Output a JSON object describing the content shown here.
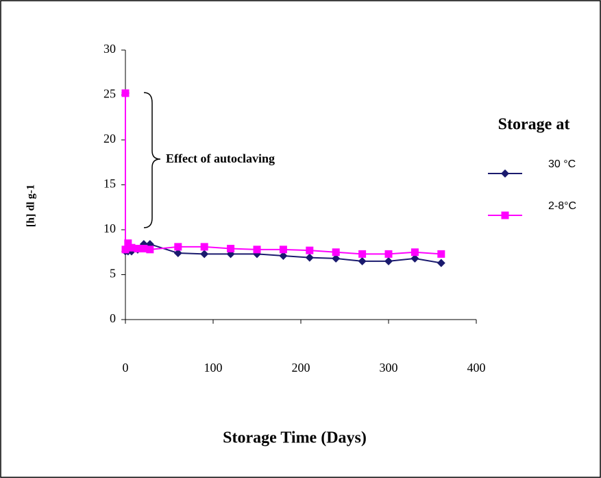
{
  "chart_data": {
    "type": "line",
    "x_label": "Storage Time (Days)",
    "y_label": "[h] dl g-1",
    "legend_title": "Storage at",
    "annotation": "Effect of autoclaving",
    "x": [
      0,
      0,
      3,
      7,
      14,
      21,
      28,
      60,
      90,
      120,
      150,
      180,
      210,
      240,
      270,
      300,
      330,
      360
    ],
    "series": [
      {
        "name": "30 °C",
        "color": "#1a1a6e",
        "marker": "diamond",
        "values": [
          25.2,
          7.6,
          7.6,
          7.6,
          7.8,
          8.4,
          8.4,
          7.4,
          7.3,
          7.3,
          7.3,
          7.1,
          6.9,
          6.8,
          6.5,
          6.5,
          6.8,
          6.3
        ]
      },
      {
        "name": "2-8°C",
        "color": "#ff00ff",
        "marker": "square",
        "values": [
          25.2,
          7.8,
          8.5,
          8.0,
          7.9,
          7.9,
          7.8,
          8.1,
          8.1,
          7.9,
          7.8,
          7.8,
          7.7,
          7.5,
          7.3,
          7.3,
          7.5,
          7.3
        ]
      }
    ],
    "xlim": [
      0,
      400
    ],
    "xticks": [
      0,
      100,
      200,
      300,
      400
    ],
    "ylim": [
      0,
      30
    ],
    "yticks": [
      0,
      5,
      10,
      15,
      20,
      25,
      30
    ],
    "grid": false
  }
}
